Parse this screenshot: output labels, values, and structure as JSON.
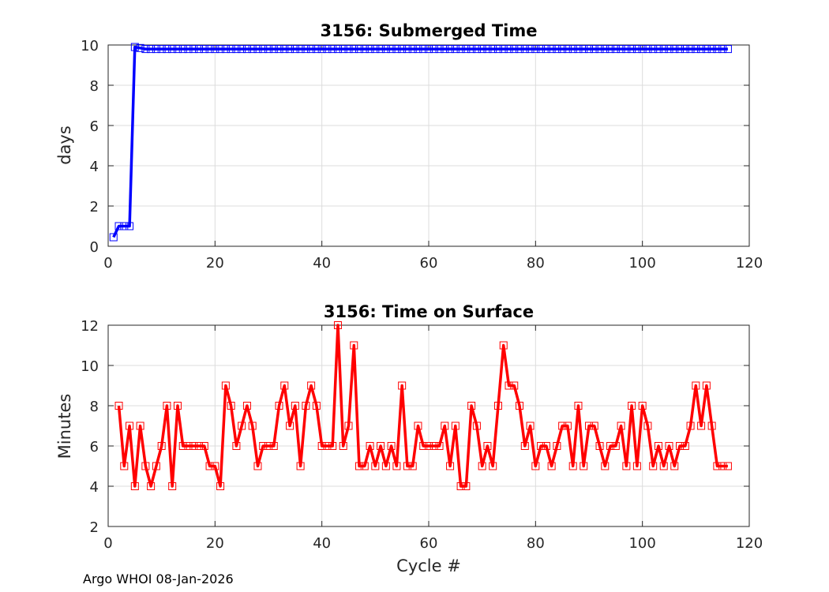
{
  "footer": "Argo WHOI 08-Jan-2026",
  "chart_data": [
    {
      "type": "line",
      "title": "3156: Submerged Time",
      "xlabel": "",
      "ylabel": "days",
      "xlim": [
        0,
        120
      ],
      "ylim": [
        0,
        10
      ],
      "xticks": [
        0,
        20,
        40,
        60,
        80,
        100,
        120
      ],
      "yticks": [
        0,
        2,
        4,
        6,
        8,
        10
      ],
      "grid": true,
      "color": "#0000ff",
      "marker": "square",
      "x": [
        1,
        2,
        3,
        4,
        5,
        6,
        7,
        8,
        9,
        10,
        11,
        12,
        13,
        14,
        15,
        16,
        17,
        18,
        19,
        20,
        21,
        22,
        23,
        24,
        25,
        26,
        27,
        28,
        29,
        30,
        31,
        32,
        33,
        34,
        35,
        36,
        37,
        38,
        39,
        40,
        41,
        42,
        43,
        44,
        45,
        46,
        47,
        48,
        49,
        50,
        51,
        52,
        53,
        54,
        55,
        56,
        57,
        58,
        59,
        60,
        61,
        62,
        63,
        64,
        65,
        66,
        67,
        68,
        69,
        70,
        71,
        72,
        73,
        74,
        75,
        76,
        77,
        78,
        79,
        80,
        81,
        82,
        83,
        84,
        85,
        86,
        87,
        88,
        89,
        90,
        91,
        92,
        93,
        94,
        95,
        96,
        97,
        98,
        99,
        100,
        101,
        102,
        103,
        104,
        105,
        106,
        107,
        108,
        109,
        110,
        111,
        112,
        113,
        114,
        115,
        116
      ],
      "y": [
        0.45,
        1.0,
        1.0,
        1.0,
        9.9,
        9.85,
        9.8,
        9.8,
        9.8,
        9.8,
        9.8,
        9.8,
        9.8,
        9.8,
        9.8,
        9.8,
        9.8,
        9.8,
        9.8,
        9.8,
        9.8,
        9.8,
        9.8,
        9.8,
        9.8,
        9.8,
        9.8,
        9.8,
        9.8,
        9.8,
        9.8,
        9.8,
        9.8,
        9.8,
        9.8,
        9.8,
        9.8,
        9.8,
        9.8,
        9.8,
        9.8,
        9.8,
        9.8,
        9.8,
        9.8,
        9.8,
        9.8,
        9.8,
        9.8,
        9.8,
        9.8,
        9.8,
        9.8,
        9.8,
        9.8,
        9.8,
        9.8,
        9.8,
        9.8,
        9.8,
        9.8,
        9.8,
        9.8,
        9.8,
        9.8,
        9.8,
        9.8,
        9.8,
        9.8,
        9.8,
        9.8,
        9.8,
        9.8,
        9.8,
        9.8,
        9.8,
        9.8,
        9.8,
        9.8,
        9.8,
        9.8,
        9.8,
        9.8,
        9.8,
        9.8,
        9.8,
        9.8,
        9.8,
        9.8,
        9.8,
        9.8,
        9.8,
        9.8,
        9.8,
        9.8,
        9.8,
        9.8,
        9.8,
        9.8,
        9.8,
        9.8,
        9.8,
        9.8,
        9.8,
        9.8,
        9.8,
        9.8,
        9.8,
        9.8,
        9.8,
        9.8,
        9.8,
        9.8,
        9.8,
        9.8,
        9.8
      ]
    },
    {
      "type": "line",
      "title": "3156: Time on Surface",
      "xlabel": "Cycle #",
      "ylabel": "Minutes",
      "xlim": [
        0,
        120
      ],
      "ylim": [
        2,
        12
      ],
      "xticks": [
        0,
        20,
        40,
        60,
        80,
        100,
        120
      ],
      "yticks": [
        2,
        4,
        6,
        8,
        10,
        12
      ],
      "grid": true,
      "color": "#ff0000",
      "marker": "square",
      "x": [
        2,
        3,
        4,
        5,
        6,
        7,
        8,
        9,
        10,
        11,
        12,
        13,
        14,
        15,
        16,
        17,
        18,
        19,
        20,
        21,
        22,
        23,
        24,
        25,
        26,
        27,
        28,
        29,
        30,
        31,
        32,
        33,
        34,
        35,
        36,
        37,
        38,
        39,
        40,
        41,
        42,
        43,
        44,
        45,
        46,
        47,
        48,
        49,
        50,
        51,
        52,
        53,
        54,
        55,
        56,
        57,
        58,
        59,
        60,
        61,
        62,
        63,
        64,
        65,
        66,
        67,
        68,
        69,
        70,
        71,
        72,
        73,
        74,
        75,
        76,
        77,
        78,
        79,
        80,
        81,
        82,
        83,
        84,
        85,
        86,
        87,
        88,
        89,
        90,
        91,
        92,
        93,
        94,
        95,
        96,
        97,
        98,
        99,
        100,
        101,
        102,
        103,
        104,
        105,
        106,
        107,
        108,
        109,
        110,
        111,
        112,
        113,
        114,
        115,
        116
      ],
      "y": [
        8,
        5,
        7,
        4,
        7,
        5,
        4,
        5,
        6,
        8,
        4,
        8,
        6,
        6,
        6,
        6,
        6,
        5,
        5,
        4,
        9,
        8,
        6,
        7,
        8,
        7,
        5,
        6,
        6,
        6,
        8,
        9,
        7,
        8,
        5,
        8,
        9,
        8,
        6,
        6,
        6,
        12,
        6,
        7,
        11,
        5,
        5,
        6,
        5,
        6,
        5,
        6,
        5,
        9,
        5,
        5,
        7,
        6,
        6,
        6,
        6,
        7,
        5,
        7,
        4,
        4,
        8,
        7,
        5,
        6,
        5,
        8,
        11,
        9,
        9,
        8,
        6,
        7,
        5,
        6,
        6,
        5,
        6,
        7,
        7,
        5,
        8,
        5,
        7,
        7,
        6,
        5,
        6,
        6,
        7,
        5,
        8,
        5,
        8,
        7,
        5,
        6,
        5,
        6,
        5,
        6,
        6,
        7,
        9,
        7,
        9,
        7,
        5,
        5,
        5
      ]
    }
  ]
}
